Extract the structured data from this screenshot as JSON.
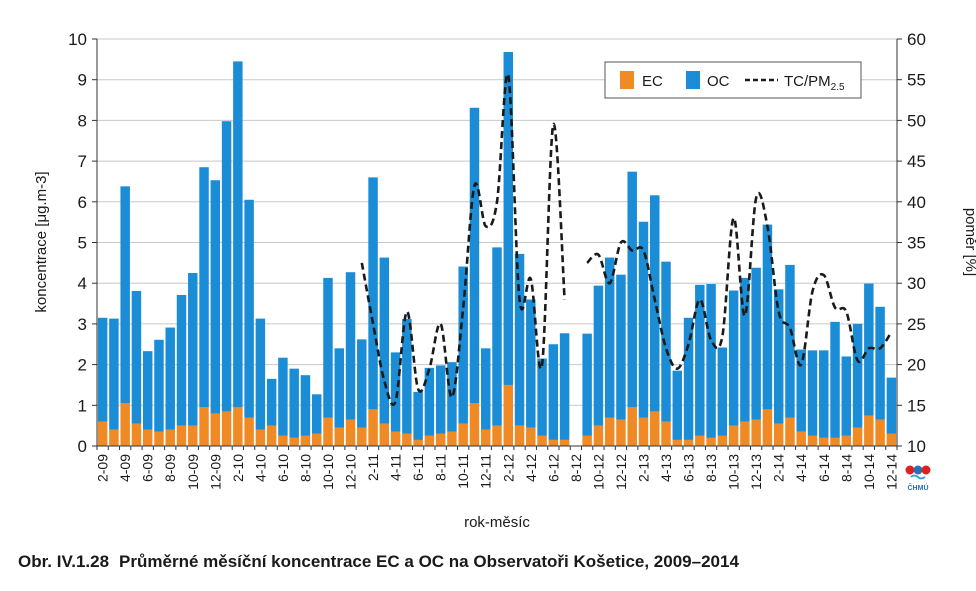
{
  "caption": {
    "number": "Obr. IV.1.28",
    "text": "Průměrné měsíční koncentrace EC a OC na Observatoři Košetice, 2009–2014"
  },
  "logo": {
    "text": "ČHMÚ"
  },
  "colors": {
    "ec": "#f08a24",
    "oc": "#1a8dd6",
    "ratio": "#1a1a1a"
  },
  "chart_data": {
    "type": "bar",
    "stacked": true,
    "xlabel": "rok-měsíc",
    "ylabel": "koncentrace [μg.m-3]",
    "y2label": "poměr [%]",
    "ylim": [
      0,
      10
    ],
    "y2lim": [
      10,
      60
    ],
    "yticks": [
      0,
      1,
      2,
      3,
      4,
      5,
      6,
      7,
      8,
      9,
      10
    ],
    "y2ticks": [
      10,
      15,
      20,
      25,
      30,
      35,
      40,
      45,
      50,
      55,
      60
    ],
    "legend": {
      "position": "top-right",
      "ec": "EC",
      "oc": "OC",
      "ratio": "TC/PM",
      "ratio_sub": "2.5"
    },
    "grid": "horizontal",
    "categories": [
      "2-09",
      "3-09",
      "4-09",
      "5-09",
      "6-09",
      "7-09",
      "8-09",
      "9-09",
      "10-09",
      "11-09",
      "12-09",
      "1-10",
      "2-10",
      "3-10",
      "4-10",
      "5-10",
      "6-10",
      "7-10",
      "8-10",
      "9-10",
      "10-10",
      "11-10",
      "12-10",
      "1-11",
      "2-11",
      "3-11",
      "4-11",
      "5-11",
      "6-11",
      "7-11",
      "8-11",
      "9-11",
      "10-11",
      "11-11",
      "12-11",
      "1-12",
      "2-12",
      "3-12",
      "4-12",
      "5-12",
      "6-12",
      "7-12",
      "8-12",
      "9-12",
      "10-12",
      "11-12",
      "12-12",
      "1-13",
      "2-13",
      "3-13",
      "4-13",
      "5-13",
      "6-13",
      "7-13",
      "8-13",
      "9-13",
      "10-13",
      "11-13",
      "12-13",
      "1-14",
      "2-14",
      "3-14",
      "4-14",
      "5-14",
      "6-14",
      "7-14",
      "8-14",
      "9-14",
      "10-14",
      "11-14",
      "12-14"
    ],
    "tick_labels": [
      "2-09",
      "4-09",
      "6-09",
      "8-09",
      "10-09",
      "12-09",
      "2-10",
      "4-10",
      "6-10",
      "8-10",
      "10-10",
      "12-10",
      "2-11",
      "4-11",
      "6-11",
      "8-11",
      "10-11",
      "12-11",
      "2-12",
      "4-12",
      "6-12",
      "8-12",
      "10-12",
      "12-12",
      "2-13",
      "4-13",
      "6-13",
      "8-13",
      "10-13",
      "12-13",
      "2-14",
      "4-14",
      "6-14",
      "8-14",
      "10-14",
      "12-14"
    ],
    "series": [
      {
        "name": "EC",
        "values": [
          0.6,
          0.4,
          1.05,
          0.55,
          0.4,
          0.35,
          0.4,
          0.5,
          0.5,
          0.95,
          0.8,
          0.85,
          0.95,
          0.7,
          0.4,
          0.5,
          0.25,
          0.2,
          0.25,
          0.3,
          0.7,
          0.45,
          0.65,
          0.45,
          0.9,
          0.55,
          0.35,
          0.3,
          0.15,
          0.25,
          0.3,
          0.35,
          0.55,
          1.05,
          0.4,
          0.5,
          1.5,
          0.5,
          0.45,
          0.25,
          0.15,
          0.15,
          null,
          0.25,
          0.5,
          0.7,
          0.65,
          0.95,
          0.7,
          0.85,
          0.6,
          0.15,
          0.15,
          0.25,
          0.2,
          0.25,
          0.5,
          0.6,
          0.65,
          0.9,
          0.55,
          0.7,
          0.35,
          0.25,
          0.2,
          0.2,
          0.25,
          0.45,
          0.75,
          0.65,
          0.3
        ]
      },
      {
        "name": "OC",
        "values": [
          2.55,
          2.73,
          5.33,
          3.26,
          1.93,
          2.26,
          2.51,
          3.21,
          3.75,
          5.9,
          5.73,
          7.13,
          8.5,
          5.35,
          2.73,
          1.15,
          1.92,
          1.7,
          1.49,
          0.97,
          3.43,
          1.95,
          3.62,
          2.17,
          5.7,
          4.08,
          1.95,
          2.82,
          1.18,
          1.67,
          1.68,
          1.71,
          3.86,
          7.26,
          2.0,
          4.38,
          8.18,
          4.22,
          3.15,
          1.9,
          2.35,
          2.62,
          null,
          2.51,
          3.44,
          3.93,
          3.56,
          5.79,
          4.81,
          5.31,
          3.93,
          1.7,
          3.0,
          3.71,
          3.78,
          2.17,
          3.32,
          3.53,
          3.73,
          4.54,
          3.3,
          3.75,
          2.02,
          2.1,
          2.15,
          2.85,
          1.95,
          2.55,
          3.24,
          2.77,
          1.38
        ]
      },
      {
        "name": "TC/PM2.5",
        "axis": "right",
        "values": [
          null,
          null,
          null,
          null,
          null,
          null,
          null,
          null,
          null,
          null,
          null,
          null,
          null,
          null,
          null,
          null,
          null,
          null,
          null,
          null,
          null,
          null,
          null,
          32.5,
          25,
          18,
          15.5,
          26.5,
          17,
          19.5,
          25,
          16,
          27,
          42,
          37,
          40,
          55.5,
          28,
          30.5,
          20,
          49.5,
          28,
          null,
          32.5,
          33.5,
          30,
          35,
          34,
          34,
          28,
          22,
          19.5,
          22.5,
          28,
          23,
          23.5,
          38,
          26,
          40.5,
          37,
          26.5,
          24.5,
          20,
          29,
          31,
          27,
          26.5,
          20.5,
          22,
          22,
          24
        ]
      }
    ]
  }
}
